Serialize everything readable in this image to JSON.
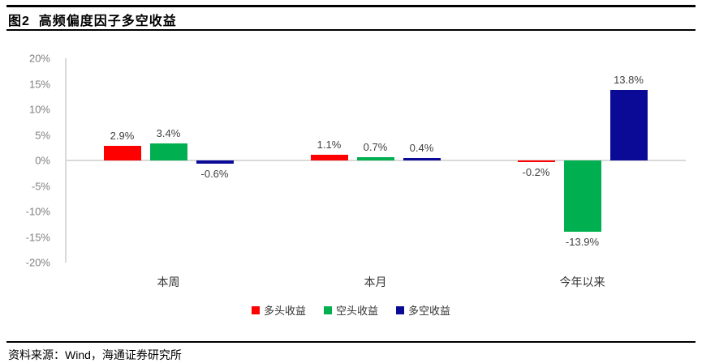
{
  "header": {
    "title": "图2  高频偏度因子多空收益"
  },
  "footer": {
    "source": "资料来源：Wind，海通证券研究所"
  },
  "chart_data": {
    "type": "bar",
    "title": "高频偏度因子多空收益",
    "categories": [
      "本周",
      "本月",
      "今年以来"
    ],
    "series": [
      {
        "name": "多头收益",
        "color": "#ff0000",
        "values": [
          2.9,
          1.1,
          -0.2
        ]
      },
      {
        "name": "空头收益",
        "color": "#00b050",
        "values": [
          3.4,
          0.7,
          -13.9
        ]
      },
      {
        "name": "多空收益",
        "color": "#0a0a96",
        "values": [
          -0.6,
          0.4,
          13.8
        ]
      }
    ],
    "value_labels": [
      [
        "2.9%",
        "1.1%",
        "-0.2%"
      ],
      [
        "3.4%",
        "0.7%",
        "-13.9%"
      ],
      [
        "-0.6%",
        "0.4%",
        "13.8%"
      ]
    ],
    "ylim": [
      -20,
      20
    ],
    "ytick_step": 5,
    "yticks": [
      "20%",
      "15%",
      "10%",
      "5%",
      "0%",
      "-5%",
      "-10%",
      "-15%",
      "-20%"
    ],
    "xlabel": "",
    "ylabel": "",
    "legend_position": "bottom",
    "grid": "zero-line-only",
    "axis_color": "#d9d9d9",
    "tick_text_color": "#7f7f7f",
    "value_text_color": "#404040"
  }
}
